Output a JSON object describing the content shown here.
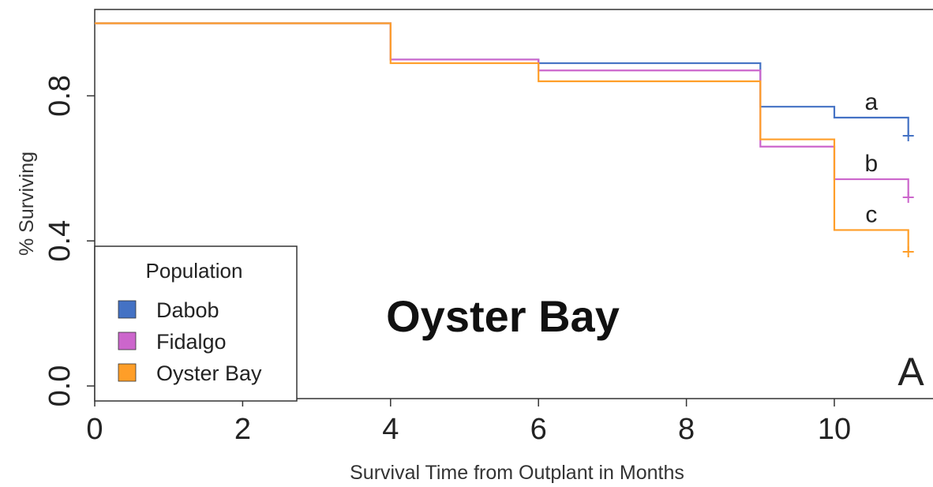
{
  "chart_data": {
    "type": "line",
    "subtype": "kaplan-meier step",
    "title": "Oyster Bay",
    "panel_label": "A",
    "xlabel": "Survival Time from Outplant in Months",
    "ylabel": "% Surviving",
    "xlim": [
      0,
      11
    ],
    "ylim": [
      0,
      1.0
    ],
    "x_ticks": [
      0,
      2,
      4,
      6,
      8,
      10
    ],
    "y_ticks": [
      0.0,
      0.4,
      0.8
    ],
    "y_tick_labels": [
      "0.0",
      "0.4",
      "0.8"
    ],
    "grid": false,
    "legend": {
      "title": "Population",
      "placement": "bottom-left"
    },
    "series": [
      {
        "name": "Dabob",
        "color": "#4472c4",
        "steps": [
          [
            0,
            1.0
          ],
          [
            4,
            0.9
          ],
          [
            6,
            0.89
          ],
          [
            9,
            0.77
          ],
          [
            10,
            0.74
          ]
        ],
        "end": [
          11,
          0.69
        ],
        "annotation": "a"
      },
      {
        "name": "Fidalgo",
        "color": "#cc66cc",
        "steps": [
          [
            0,
            1.0
          ],
          [
            4,
            0.9
          ],
          [
            6,
            0.87
          ],
          [
            9,
            0.66
          ],
          [
            10,
            0.57
          ]
        ],
        "end": [
          11,
          0.52
        ],
        "annotation": "b"
      },
      {
        "name": "Oyster Bay",
        "color": "#ff9e28",
        "steps": [
          [
            0,
            1.0
          ],
          [
            4,
            0.89
          ],
          [
            6,
            0.84
          ],
          [
            9,
            0.68
          ],
          [
            10,
            0.43
          ]
        ],
        "end": [
          11,
          0.37
        ],
        "annotation": "c"
      }
    ]
  }
}
